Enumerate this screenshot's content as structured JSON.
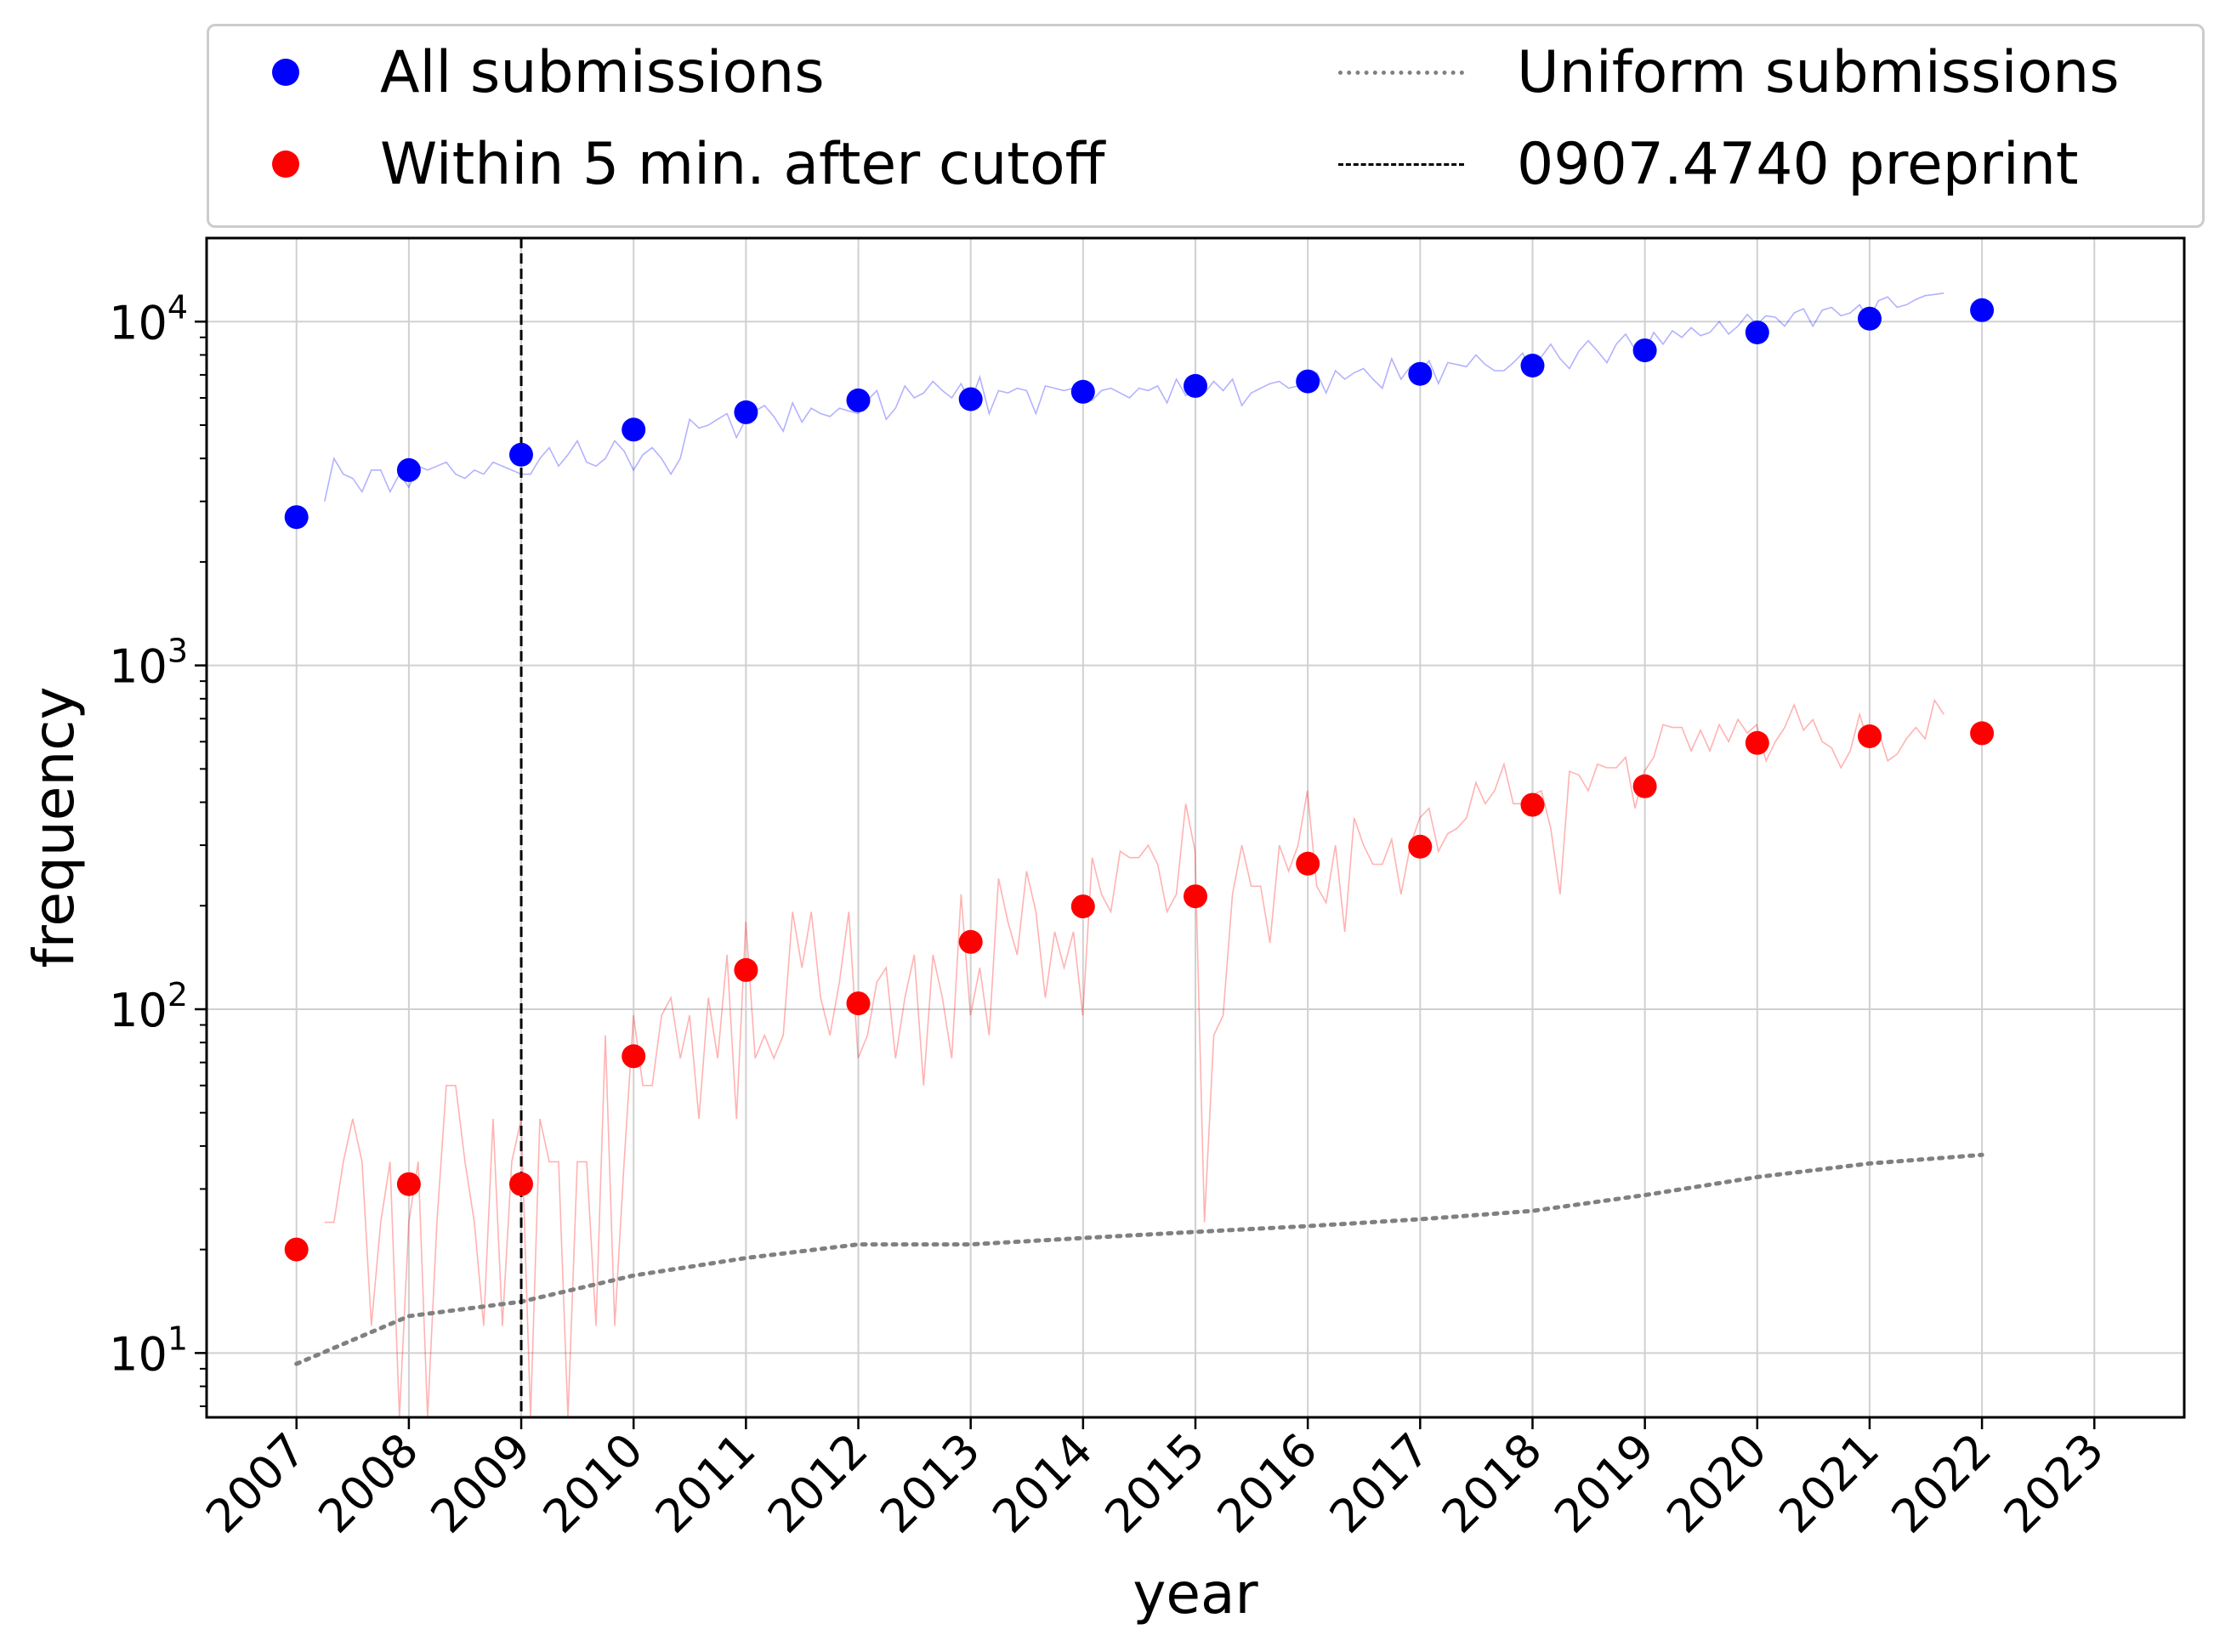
{
  "chart_data": {
    "type": "scatter",
    "xlabel": "year",
    "ylabel": "frequency",
    "yscale": "log",
    "ylim": [
      6.5,
      17500
    ],
    "xlim": [
      2006.2,
      2023.8
    ],
    "grid": true,
    "legend_position": "top, outside plot, 2 columns",
    "x_ticks": [
      2007,
      2008,
      2009,
      2010,
      2011,
      2012,
      2013,
      2014,
      2015,
      2016,
      2017,
      2018,
      2019,
      2020,
      2021,
      2022,
      2023
    ],
    "x_tick_labels": [
      "2007",
      "2008",
      "2009",
      "2010",
      "2011",
      "2012",
      "2013",
      "2014",
      "2015",
      "2016",
      "2017",
      "2018",
      "2019",
      "2020",
      "2021",
      "2022",
      "2023"
    ],
    "y_tick_labels": [
      {
        "value": 10,
        "base": "10",
        "exp": "1"
      },
      {
        "value": 100,
        "base": "10",
        "exp": "2"
      },
      {
        "value": 1000,
        "base": "10",
        "exp": "3"
      },
      {
        "value": 10000,
        "base": "10",
        "exp": "4"
      }
    ],
    "series": [
      {
        "name": "All submissions",
        "kind": "scatter",
        "color": "#0000ff",
        "x": [
          2007,
          2008,
          2009,
          2010,
          2011,
          2012,
          2013,
          2014,
          2015,
          2016,
          2017,
          2018,
          2019,
          2020,
          2021,
          2022
        ],
        "y": [
          2700,
          3700,
          4100,
          4850,
          5450,
          5900,
          5950,
          6250,
          6500,
          6700,
          7050,
          7450,
          8250,
          9300,
          10200,
          10800
        ]
      },
      {
        "name": "Within 5 min. after cutoff",
        "kind": "scatter",
        "color": "#ff0000",
        "x": [
          2007,
          2008,
          2009,
          2010,
          2011,
          2012,
          2013,
          2014,
          2015,
          2016,
          2017,
          2018,
          2019,
          2020,
          2021,
          2022
        ],
        "y": [
          20,
          31,
          31,
          73,
          130,
          104,
          157,
          199,
          213,
          265,
          297,
          393,
          445,
          595,
          622,
          635
        ]
      },
      {
        "name": "Uniform submissions",
        "kind": "line",
        "style": "dotted",
        "color": "#808080",
        "x": [
          2007,
          2008,
          2009,
          2010,
          2011,
          2012,
          2013,
          2014,
          2015,
          2016,
          2017,
          2018,
          2019,
          2020,
          2021,
          2022
        ],
        "y": [
          9.3,
          12.8,
          14.1,
          16.8,
          18.9,
          20.7,
          20.7,
          21.6,
          22.5,
          23.4,
          24.5,
          25.9,
          28.8,
          32.5,
          35.6,
          37.7
        ]
      },
      {
        "name": "0907.4740 preprint",
        "kind": "vline",
        "style": "dashed",
        "color": "#000000",
        "x": 2009
      },
      {
        "kind": "monthly-line",
        "color": "#0000ff",
        "opacity": 0.3,
        "x_start": 2007.25,
        "x_step": 0.0833,
        "y": [
          3000,
          4000,
          3600,
          3500,
          3200,
          3700,
          3700,
          3200,
          3600,
          3300,
          3800,
          3700,
          3800,
          3900,
          3600,
          3500,
          3700,
          3600,
          3900,
          3800,
          3700,
          3600,
          3600,
          4000,
          4300,
          3800,
          4100,
          4500,
          3900,
          3800,
          4000,
          4500,
          4200,
          3700,
          4100,
          4300,
          4000,
          3600,
          4000,
          5200,
          4900,
          5000,
          5200,
          5400,
          4600,
          5200,
          5500,
          5700,
          5300,
          4800,
          5800,
          5100,
          5600,
          5400,
          5300,
          5600,
          5500,
          5400,
          5900,
          6300,
          5200,
          5600,
          6500,
          6000,
          6200,
          6700,
          6300,
          6000,
          6600,
          5800,
          6900,
          5400,
          6300,
          6200,
          6400,
          6300,
          5400,
          6500,
          6400,
          6300,
          6400,
          6100,
          5900,
          6300,
          6400,
          6200,
          6000,
          6400,
          6300,
          6500,
          5800,
          6800,
          6100,
          6300,
          6200,
          6700,
          6300,
          6800,
          5700,
          6200,
          6400,
          6600,
          6700,
          6400,
          6500,
          6800,
          7100,
          6200,
          7200,
          6800,
          7100,
          7300,
          6800,
          6400,
          7800,
          6800,
          7400,
          7100,
          7700,
          6600,
          7600,
          7500,
          7400,
          8000,
          7500,
          7200,
          7200,
          7600,
          8100,
          7000,
          7900,
          8600,
          7800,
          7300,
          8200,
          8800,
          8200,
          7600,
          8600,
          9200,
          8300,
          8100,
          9300,
          8600,
          9400,
          9000,
          9600,
          9100,
          9300,
          10000,
          9200,
          9700,
          10500,
          9800,
          10400,
          10300,
          9700,
          10600,
          10900,
          9700,
          10800,
          11000,
          10400,
          10600,
          11200,
          10100,
          11500,
          11800,
          11000,
          11200,
          11600,
          11900,
          12000,
          12100
        ]
      },
      {
        "kind": "monthly-line",
        "color": "#ff0000",
        "opacity": 0.3,
        "x_start": 2007.25,
        "x_step": 0.0833,
        "y": [
          24,
          24,
          36,
          48,
          36,
          12,
          24,
          36,
          4,
          24,
          36,
          4,
          24,
          60,
          60,
          36,
          24,
          12,
          48,
          12,
          36,
          48,
          4,
          48,
          36,
          36,
          4,
          36,
          36,
          12,
          84,
          12,
          36,
          96,
          60,
          60,
          96,
          108,
          72,
          96,
          48,
          108,
          72,
          144,
          48,
          180,
          72,
          84,
          72,
          84,
          192,
          132,
          192,
          108,
          84,
          120,
          192,
          72,
          84,
          120,
          132,
          72,
          108,
          144,
          60,
          144,
          108,
          72,
          216,
          96,
          132,
          84,
          240,
          180,
          144,
          252,
          192,
          108,
          168,
          132,
          168,
          96,
          276,
          216,
          192,
          288,
          276,
          276,
          300,
          264,
          192,
          216,
          396,
          288,
          24,
          84,
          96,
          216,
          300,
          228,
          228,
          156,
          300,
          252,
          300,
          432,
          228,
          204,
          300,
          168,
          360,
          300,
          264,
          264,
          312,
          216,
          300,
          360,
          384,
          288,
          324,
          336,
          360,
          456,
          396,
          432,
          516,
          396,
          396,
          420,
          432,
          336,
          216,
          492,
          480,
          432,
          516,
          504,
          504,
          540,
          384,
          492,
          540,
          672,
          660,
          660,
          564,
          648,
          564,
          672,
          600,
          696,
          636,
          672,
          528,
          600,
          660,
          768,
          648,
          696,
          600,
          576,
          504,
          564,
          720,
          588,
          648,
          528,
          552,
          612,
          660,
          612,
          792,
          720
        ]
      }
    ]
  }
}
